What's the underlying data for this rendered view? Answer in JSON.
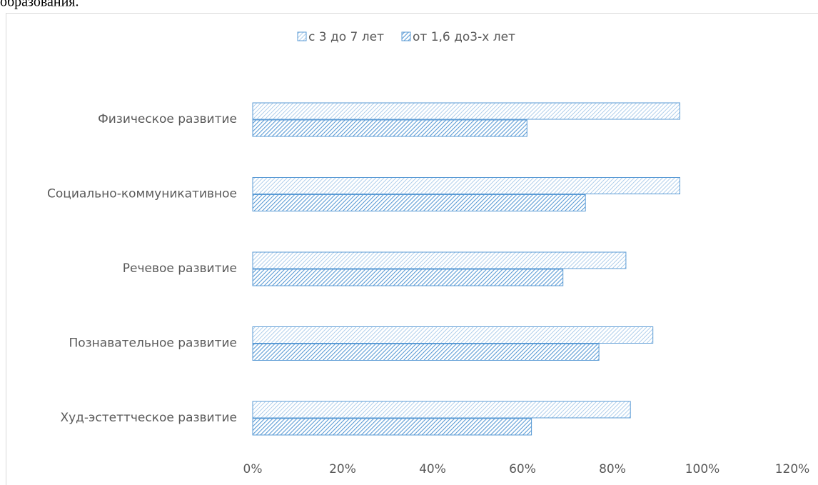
{
  "heading": "образования.",
  "chart_data": {
    "type": "hbar",
    "categories": [
      "Физическое развитие",
      "Социально-коммуникативное",
      "Речевое развитие",
      "Познавательное развитие",
      "Худ-эстеттческое развитие"
    ],
    "series": [
      {
        "name": "с 3 до 7 лет",
        "color": "#9dc3e6",
        "values": [
          95,
          95,
          83,
          89,
          84
        ]
      },
      {
        "name": "от 1,6 до3-х лет",
        "color": "#5b9bd5",
        "values": [
          61,
          74,
          69,
          77,
          62
        ]
      }
    ],
    "xlim": [
      0,
      120
    ],
    "xticks": [
      {
        "value": 0,
        "label": "0%"
      },
      {
        "value": 20,
        "label": "20%"
      },
      {
        "value": 40,
        "label": "40%"
      },
      {
        "value": 60,
        "label": "60%"
      },
      {
        "value": 80,
        "label": "80%"
      },
      {
        "value": 100,
        "label": "100%"
      },
      {
        "value": 120,
        "label": "120%"
      }
    ],
    "legend": "top"
  }
}
